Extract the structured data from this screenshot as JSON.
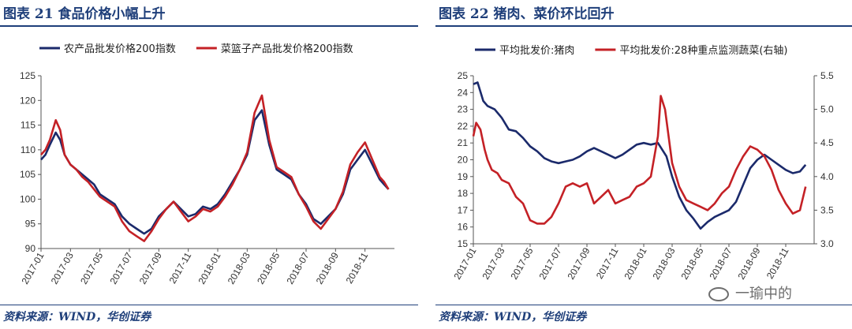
{
  "left": {
    "title": "图表 21   食品价格小幅上升",
    "source": "资料来源：WIND，华创证券",
    "chart_data": {
      "type": "line",
      "legend_placement": "top",
      "ylim": [
        90,
        125
      ],
      "yticks": [
        90,
        95,
        100,
        105,
        110,
        115,
        120,
        125
      ],
      "xticks": [
        "2017-01",
        "2017-03",
        "2017-05",
        "2017-07",
        "2017-09",
        "2017-11",
        "2018-01",
        "2018-03",
        "2018-05",
        "2018-07",
        "2018-09",
        "2018-11"
      ],
      "xrange": [
        0,
        24
      ],
      "series": [
        {
          "name": "农产品批发价格200指数",
          "color": "#1b2a6b",
          "x": [
            0,
            0.3,
            0.6,
            1,
            1.3,
            1.6,
            2,
            2.4,
            2.8,
            3.2,
            3.6,
            4,
            4.5,
            5,
            5.5,
            6,
            6.5,
            7,
            7.5,
            8,
            8.5,
            9,
            9.5,
            10,
            10.5,
            11,
            11.5,
            12,
            12.5,
            13,
            13.5,
            14,
            14.5,
            15,
            15.5,
            16,
            16.5,
            17,
            17.5,
            18,
            18.5,
            19,
            19.5,
            20,
            20.5,
            21,
            21.5,
            22,
            22.5,
            23,
            23.3,
            23.6
          ],
          "y": [
            108,
            109,
            111,
            113.5,
            112,
            109,
            107,
            106,
            105,
            104,
            103,
            101,
            100,
            99,
            96.5,
            95,
            94,
            93,
            94,
            96.5,
            98,
            99.5,
            98,
            96.5,
            97,
            98.5,
            98,
            99,
            101,
            103.5,
            106,
            109,
            116,
            118,
            111,
            106,
            105,
            104,
            101,
            99,
            96,
            95,
            96.5,
            98,
            101,
            106,
            108,
            110,
            107,
            104,
            103,
            102
          ]
        },
        {
          "name": "菜篮子产品批发价格200指数",
          "color": "#c42126",
          "x": [
            0,
            0.3,
            0.6,
            1,
            1.3,
            1.6,
            2,
            2.4,
            2.8,
            3.2,
            3.6,
            4,
            4.5,
            5,
            5.5,
            6,
            6.5,
            7,
            7.5,
            8,
            8.5,
            9,
            9.5,
            10,
            10.5,
            11,
            11.5,
            12,
            12.5,
            13,
            13.5,
            14,
            14.5,
            15,
            15.5,
            16,
            16.5,
            17,
            17.5,
            18,
            18.5,
            19,
            19.5,
            20,
            20.5,
            21,
            21.5,
            22,
            22.5,
            23,
            23.3,
            23.6
          ],
          "y": [
            109,
            110,
            112,
            116,
            114,
            109,
            107,
            106,
            104.5,
            103.5,
            102,
            100.5,
            99.5,
            98.5,
            95.5,
            93.5,
            92.5,
            91.5,
            93.5,
            96,
            98,
            99.5,
            97.5,
            95.5,
            96.5,
            98,
            97.5,
            98.5,
            100.5,
            103,
            106,
            109.5,
            117.5,
            121,
            112,
            106.5,
            105.5,
            104.5,
            101,
            98.5,
            95.5,
            94,
            96,
            98,
            101.5,
            107,
            109.5,
            111.5,
            108,
            104.5,
            103.5,
            102
          ]
        }
      ]
    }
  },
  "right": {
    "title": "图表 22   猪肉、菜价环比回升",
    "source": "资料来源：WIND，华创证券",
    "chart_data": {
      "type": "line",
      "legend_placement": "top",
      "ylim": [
        15,
        25
      ],
      "yticks": [
        15,
        16,
        17,
        18,
        19,
        20,
        21,
        22,
        23,
        24,
        25
      ],
      "ylim_right": [
        3.0,
        5.5
      ],
      "yticks_right": [
        3.0,
        3.5,
        4.0,
        4.5,
        5.0,
        5.5
      ],
      "xticks": [
        "2017-01",
        "2017-03",
        "2017-05",
        "2017-07",
        "2017-09",
        "2017-11",
        "2018-01",
        "2018-03",
        "2018-05",
        "2018-07",
        "2018-09",
        "2018-11"
      ],
      "xrange": [
        0,
        24
      ],
      "series": [
        {
          "name": "平均批发价:猪肉",
          "color": "#1b2a6b",
          "axis": "left",
          "x": [
            0,
            0.3,
            0.7,
            1,
            1.5,
            2,
            2.5,
            3,
            3.5,
            4,
            4.5,
            5,
            5.5,
            6,
            6.5,
            7,
            7.5,
            8,
            8.5,
            9,
            9.5,
            10,
            10.5,
            11,
            11.5,
            12,
            12.5,
            13,
            13.3,
            13.6,
            14,
            14.5,
            15,
            15.5,
            16,
            16.5,
            17,
            17.5,
            18,
            18.5,
            19,
            19.5,
            20,
            20.5,
            21,
            21.5,
            22,
            22.5,
            23,
            23.4
          ],
          "y": [
            24.5,
            24.6,
            23.5,
            23.2,
            23,
            22.5,
            21.8,
            21.7,
            21.3,
            20.8,
            20.5,
            20.1,
            19.9,
            19.8,
            19.9,
            20,
            20.2,
            20.5,
            20.7,
            20.5,
            20.3,
            20.1,
            20.3,
            20.6,
            20.9,
            21,
            20.9,
            21,
            20.6,
            20.2,
            19,
            17.8,
            17,
            16.5,
            15.9,
            16.3,
            16.6,
            16.8,
            17,
            17.5,
            18.5,
            19.5,
            20,
            20.3,
            20,
            19.7,
            19.4,
            19.2,
            19.3,
            19.7
          ]
        },
        {
          "name": "平均批发价:28种重点监测蔬菜(右轴)",
          "color": "#c42126",
          "axis": "right",
          "x": [
            0,
            0.2,
            0.5,
            0.8,
            1,
            1.3,
            1.7,
            2,
            2.5,
            3,
            3.5,
            4,
            4.5,
            5,
            5.5,
            6,
            6.5,
            7,
            7.5,
            8,
            8.5,
            9,
            9.5,
            10,
            10.5,
            11,
            11.5,
            12,
            12.5,
            13,
            13.2,
            13.5,
            14,
            14.5,
            15,
            15.5,
            16,
            16.5,
            17,
            17.5,
            18,
            18.5,
            19,
            19.5,
            20,
            20.5,
            21,
            21.5,
            22,
            22.5,
            23,
            23.4
          ],
          "y": [
            4.6,
            4.8,
            4.7,
            4.4,
            4.25,
            4.1,
            4.05,
            3.95,
            3.9,
            3.7,
            3.6,
            3.35,
            3.3,
            3.3,
            3.4,
            3.6,
            3.85,
            3.9,
            3.85,
            3.9,
            3.6,
            3.7,
            3.8,
            3.6,
            3.65,
            3.7,
            3.85,
            3.9,
            4.0,
            4.6,
            5.2,
            5.0,
            4.2,
            3.85,
            3.65,
            3.6,
            3.55,
            3.5,
            3.6,
            3.75,
            3.85,
            4.1,
            4.3,
            4.45,
            4.4,
            4.3,
            4.1,
            3.8,
            3.6,
            3.45,
            3.5,
            3.85
          ]
        }
      ]
    }
  },
  "watermark": "一瑜中的"
}
